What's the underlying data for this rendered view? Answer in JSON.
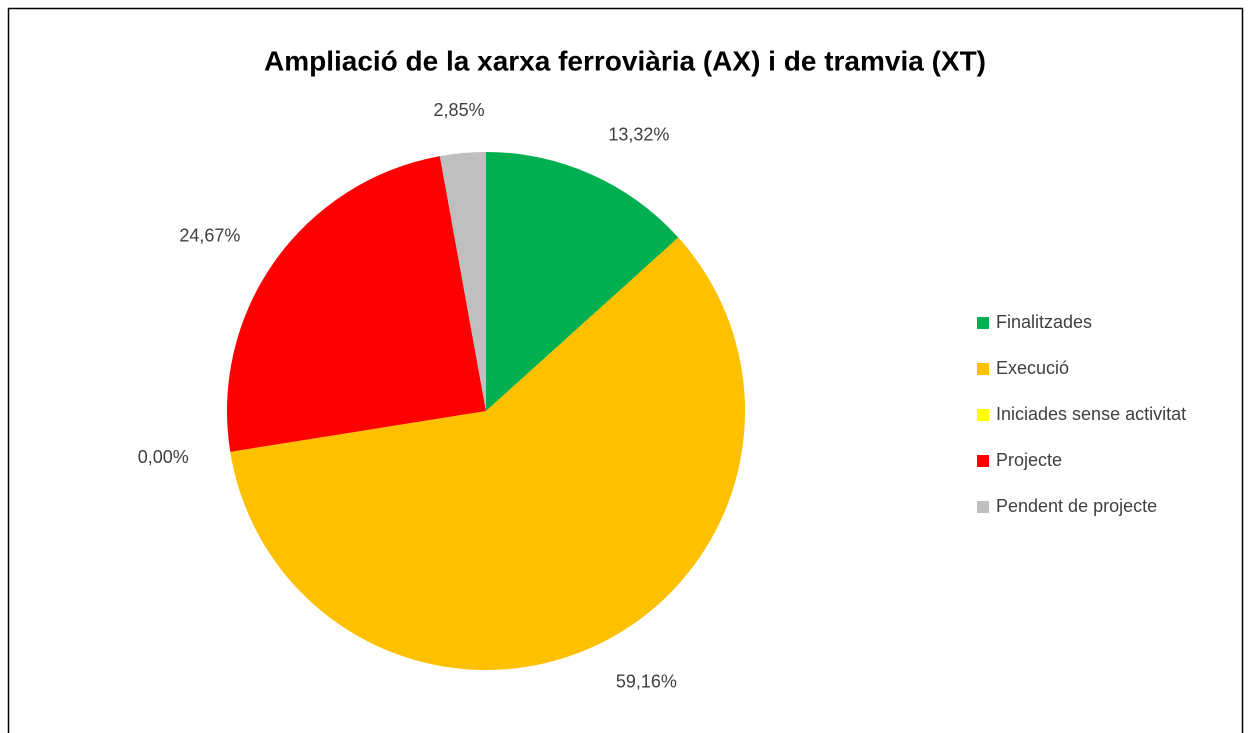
{
  "chart_data": {
    "type": "pie",
    "title": "Ampliació de la xarxa ferroviària (AX) i de tramvia (XT)",
    "categories": [
      "Finalitzades",
      "Execució",
      "Iniciades sense activitat",
      "Projecte",
      "Pendent de projecte"
    ],
    "values": [
      13.32,
      59.16,
      0,
      24.67,
      2.85
    ],
    "value_labels": [
      "13,32%",
      "59,16%",
      "0,00%",
      "24,67%",
      "2,85%"
    ],
    "colors": [
      "#00b050",
      "#ffc000",
      "#ffff00",
      "#ff0000",
      "#bfbfbf"
    ],
    "legend": "right"
  }
}
